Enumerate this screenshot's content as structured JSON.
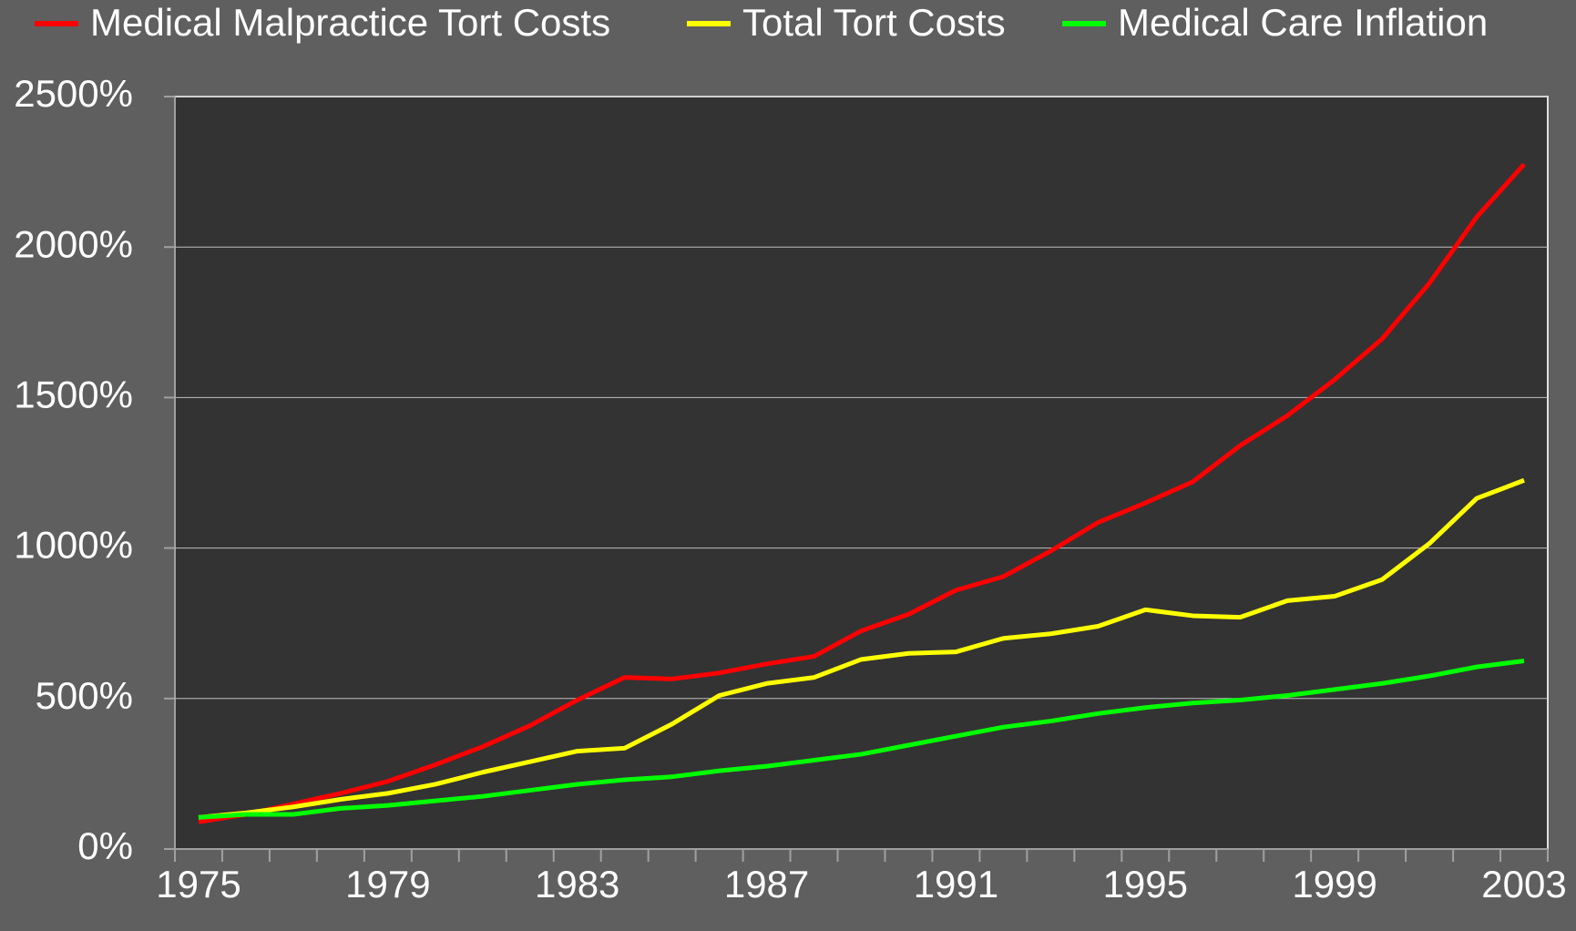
{
  "chart_data": {
    "type": "line",
    "categories": [
      "1975",
      null,
      null,
      null,
      "1979",
      null,
      null,
      null,
      "1983",
      null,
      null,
      null,
      "1987",
      null,
      null,
      null,
      "1991",
      null,
      null,
      null,
      "1995",
      null,
      null,
      null,
      "1999",
      null,
      null,
      null,
      "2003"
    ],
    "series": [
      {
        "name": "Medical Malpractice Tort Costs",
        "color": "#ff0000",
        "values": [
          90,
          115,
          150,
          185,
          225,
          280,
          340,
          410,
          495,
          570,
          565,
          585,
          615,
          640,
          725,
          780,
          860,
          905,
          990,
          1085,
          1150,
          1220,
          1340,
          1440,
          1560,
          1695,
          1880,
          2100,
          2275
        ]
      },
      {
        "name": "Total Tort Costs",
        "color": "#ffff00",
        "values": [
          105,
          120,
          140,
          165,
          185,
          215,
          255,
          290,
          325,
          335,
          415,
          510,
          550,
          570,
          630,
          650,
          655,
          700,
          715,
          740,
          795,
          775,
          770,
          825,
          840,
          895,
          1015,
          1165,
          1225
        ]
      },
      {
        "name": "Medical Care Inflation",
        "color": "#00ff00",
        "values": [
          105,
          115,
          115,
          135,
          145,
          160,
          175,
          195,
          215,
          230,
          240,
          260,
          275,
          295,
          315,
          345,
          375,
          405,
          425,
          450,
          470,
          485,
          495,
          510,
          530,
          550,
          575,
          605,
          625
        ]
      }
    ],
    "ylim": [
      0,
      2500
    ],
    "yticks": [
      {
        "value": 0,
        "label": "0%"
      },
      {
        "value": 500,
        "label": "500%"
      },
      {
        "value": 1000,
        "label": "1000%"
      },
      {
        "value": 1500,
        "label": "1500%"
      },
      {
        "value": 2000,
        "label": "2000%"
      },
      {
        "value": 2500,
        "label": "2500%"
      }
    ],
    "grid": true,
    "legend": "top"
  }
}
